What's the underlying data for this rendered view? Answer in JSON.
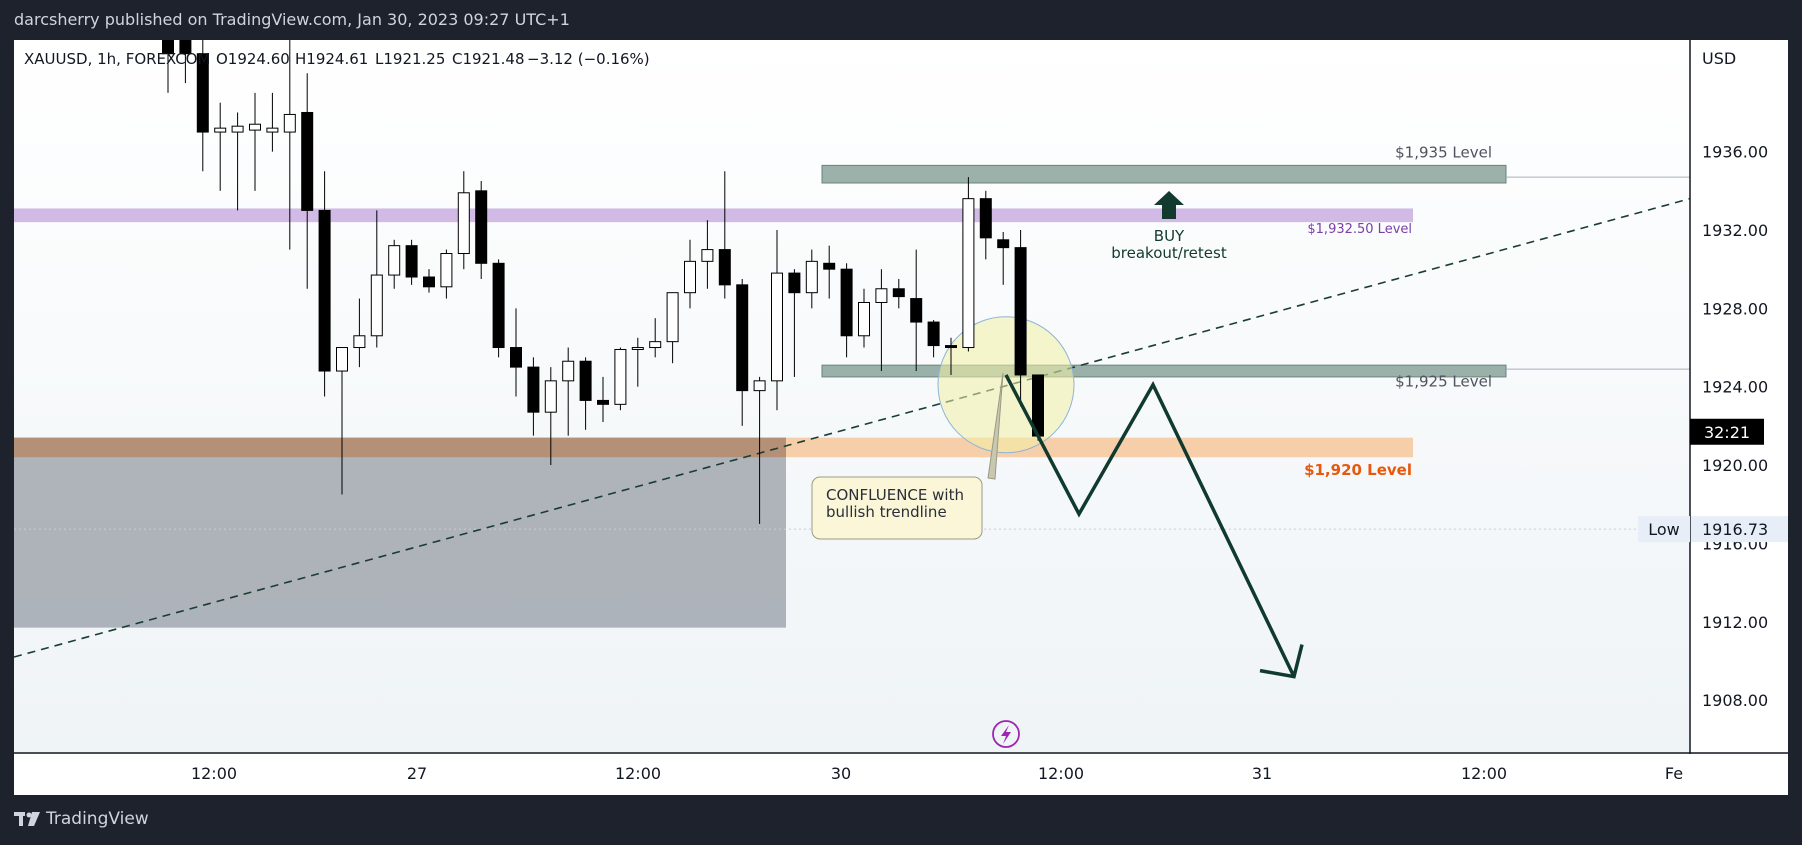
{
  "header": {
    "published_text": "darcsherry published on TradingView.com, Jan 30, 2023 09:27 UTC+1"
  },
  "footer": {
    "brand": "TradingView"
  },
  "chart_data": {
    "type": "candlestick",
    "symbol_info": "XAUUSD, 1h, FOREXCOM",
    "ohlc_text": {
      "open": "O1924.60",
      "high": "H1924.61",
      "low": "L1921.25",
      "close": "C1921.48",
      "change": "−3.12 (−0.16%)"
    },
    "currency": "USD",
    "ylim": [
      1905.3,
      1941.7
    ],
    "y_ticks": [
      "1936.00",
      "1932.00",
      "1928.00",
      "1924.00",
      "1920.00",
      "1916.00",
      "1912.00",
      "1908.00"
    ],
    "x_ticks": [
      "12:00",
      "27",
      "12:00",
      "30",
      "12:00",
      "31",
      "12:00",
      "Fe"
    ],
    "price_badge": "32:21",
    "low_marker": {
      "label": "Low",
      "value": "1916.73"
    },
    "candles": [
      {
        "o": 1948,
        "h": 1950,
        "l": 1939,
        "c": 1941
      },
      {
        "o": 1950,
        "h": 1952,
        "l": 1939.5,
        "c": 1941
      },
      {
        "o": 1941,
        "h": 1946,
        "l": 1935,
        "c": 1937
      },
      {
        "o": 1937,
        "h": 1938.5,
        "l": 1934,
        "c": 1937.2
      },
      {
        "o": 1937,
        "h": 1938,
        "l": 1933,
        "c": 1937.3
      },
      {
        "o": 1937.1,
        "h": 1939,
        "l": 1934,
        "c": 1937.4
      },
      {
        "o": 1937,
        "h": 1939,
        "l": 1936,
        "c": 1937.2
      },
      {
        "o": 1937,
        "h": 1943,
        "l": 1931,
        "c": 1937.9
      },
      {
        "o": 1938,
        "h": 1940,
        "l": 1929,
        "c": 1933
      },
      {
        "o": 1933,
        "h": 1935,
        "l": 1923.5,
        "c": 1924.8
      },
      {
        "o": 1924.8,
        "h": 1926,
        "l": 1918.5,
        "c": 1926
      },
      {
        "o": 1926,
        "h": 1928.5,
        "l": 1925,
        "c": 1926.6
      },
      {
        "o": 1926.6,
        "h": 1933,
        "l": 1926,
        "c": 1929.7
      },
      {
        "o": 1929.7,
        "h": 1931.5,
        "l": 1929,
        "c": 1931.2
      },
      {
        "o": 1931.2,
        "h": 1931.5,
        "l": 1929.2,
        "c": 1929.6
      },
      {
        "o": 1929.6,
        "h": 1930,
        "l": 1928.8,
        "c": 1929.1
      },
      {
        "o": 1929.1,
        "h": 1931,
        "l": 1928.5,
        "c": 1930.8
      },
      {
        "o": 1930.8,
        "h": 1935,
        "l": 1930,
        "c": 1933.9
      },
      {
        "o": 1934,
        "h": 1934.5,
        "l": 1929.5,
        "c": 1930.3
      },
      {
        "o": 1930.3,
        "h": 1930.5,
        "l": 1925.5,
        "c": 1926
      },
      {
        "o": 1926,
        "h": 1928,
        "l": 1923.5,
        "c": 1925
      },
      {
        "o": 1925,
        "h": 1925.5,
        "l": 1921.5,
        "c": 1922.7
      },
      {
        "o": 1922.7,
        "h": 1925,
        "l": 1920,
        "c": 1924.3
      },
      {
        "o": 1924.3,
        "h": 1926,
        "l": 1921.5,
        "c": 1925.3
      },
      {
        "o": 1925.3,
        "h": 1925.5,
        "l": 1921.8,
        "c": 1923.3
      },
      {
        "o": 1923.3,
        "h": 1924.5,
        "l": 1922.2,
        "c": 1923.1
      },
      {
        "o": 1923.1,
        "h": 1926,
        "l": 1922.8,
        "c": 1925.9
      },
      {
        "o": 1925.9,
        "h": 1926.5,
        "l": 1924,
        "c": 1926
      },
      {
        "o": 1926,
        "h": 1927.5,
        "l": 1925.5,
        "c": 1926.3
      },
      {
        "o": 1926.3,
        "h": 1928.5,
        "l": 1925.2,
        "c": 1928.8
      },
      {
        "o": 1928.8,
        "h": 1931.5,
        "l": 1928,
        "c": 1930.4
      },
      {
        "o": 1930.4,
        "h": 1932.5,
        "l": 1929,
        "c": 1931
      },
      {
        "o": 1931,
        "h": 1935,
        "l": 1928.5,
        "c": 1929.2
      },
      {
        "o": 1929.2,
        "h": 1929.5,
        "l": 1922,
        "c": 1923.8
      },
      {
        "o": 1923.8,
        "h": 1924.5,
        "l": 1917,
        "c": 1924.3
      },
      {
        "o": 1924.3,
        "h": 1932,
        "l": 1922.8,
        "c": 1929.8
      },
      {
        "o": 1929.8,
        "h": 1930,
        "l": 1924.5,
        "c": 1928.8
      },
      {
        "o": 1928.8,
        "h": 1931,
        "l": 1928,
        "c": 1930.4
      },
      {
        "o": 1930.3,
        "h": 1931.2,
        "l": 1928.5,
        "c": 1930
      },
      {
        "o": 1930,
        "h": 1930.3,
        "l": 1925.5,
        "c": 1926.6
      },
      {
        "o": 1926.6,
        "h": 1929,
        "l": 1926,
        "c": 1928.3
      },
      {
        "o": 1928.3,
        "h": 1930,
        "l": 1924.8,
        "c": 1929
      },
      {
        "o": 1929,
        "h": 1929.5,
        "l": 1928,
        "c": 1928.6
      },
      {
        "o": 1928.5,
        "h": 1931,
        "l": 1924.8,
        "c": 1927.3
      },
      {
        "o": 1927.3,
        "h": 1927.4,
        "l": 1925.5,
        "c": 1926.1
      },
      {
        "o": 1926.1,
        "h": 1926.5,
        "l": 1924.6,
        "c": 1926
      },
      {
        "o": 1926,
        "h": 1934.7,
        "l": 1925.8,
        "c": 1933.6
      },
      {
        "o": 1933.6,
        "h": 1934,
        "l": 1930.5,
        "c": 1931.6
      },
      {
        "o": 1931.5,
        "h": 1931.9,
        "l": 1929.2,
        "c": 1931.1
      },
      {
        "o": 1931.1,
        "h": 1932,
        "l": 1923,
        "c": 1924.6
      },
      {
        "o": 1924.6,
        "h": 1924.61,
        "l": 1921.25,
        "c": 1921.48
      }
    ],
    "zones": [
      {
        "label": "$1,935 Level",
        "from": 1934.4,
        "to": 1935.3,
        "color": "#8aa39a"
      },
      {
        "label": "$1,932.50 Level",
        "from": 1932.4,
        "to": 1933.1,
        "color": "#c9aee0"
      },
      {
        "label": "$1,925 Level",
        "from": 1924.5,
        "to": 1925.1,
        "color": "#8aa39a"
      },
      {
        "label": "$1,920 Level",
        "from": 1920.4,
        "to": 1921.4,
        "color": "#f6c9a0"
      }
    ],
    "zone_label_colors": {
      "l1935": "#50535e",
      "l1932_5": "#7b3fa8",
      "l1925": "#50535e",
      "l1920": "#e8580c"
    },
    "annotations": {
      "buy_title": "BUY",
      "buy_sub": "breakout/retest",
      "confluence_line1": "CONFLUENCE with",
      "confluence_line2": "bullish trendline"
    },
    "projection_path": [
      1924.6,
      1917.5,
      1924.1,
      1909.2
    ],
    "colors": {
      "bull_body": "#ffffff",
      "bear_body": "#000000",
      "path": "#103a2e",
      "trendline": "#1a3d33",
      "low_line": "#c8ccd4"
    }
  }
}
